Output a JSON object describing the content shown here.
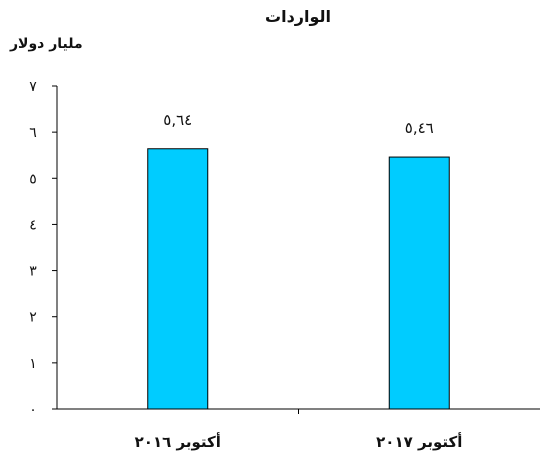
{
  "chart_data": {
    "type": "bar",
    "title": "الواردات",
    "ylabel": "مليار دولار",
    "xlabel": "",
    "categories": [
      "أكتوبر ٢٠١٧",
      "أكتوبر ٢٠١٦"
    ],
    "values": [
      5.46,
      5.64
    ],
    "data_labels": [
      "٥,٤٦",
      "٥,٦٤"
    ],
    "ylim": [
      0,
      7
    ],
    "y_ticks": [
      0,
      1,
      2,
      3,
      4,
      5,
      6,
      7
    ],
    "y_tick_labels": [
      "٠",
      "١",
      "٢",
      "٣",
      "٤",
      "٥",
      "٦",
      "٧"
    ],
    "bar_color": "#00CCFF",
    "bar_edge_color": "#000000",
    "grid": false,
    "legend": "none"
  }
}
